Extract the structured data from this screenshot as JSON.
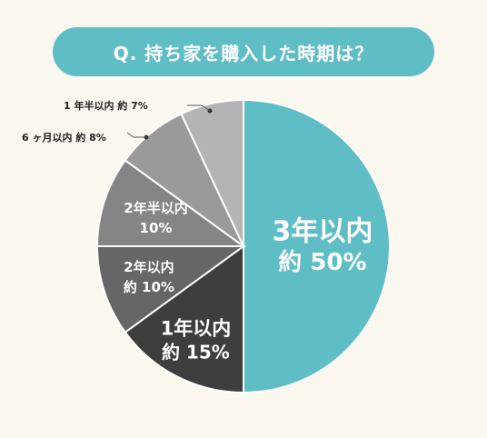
{
  "chart_data": {
    "type": "pie",
    "title": "Q. 持ち家を購入した時期は？",
    "start": "12 o'clock",
    "direction": "clockwise",
    "legend": "none",
    "slices": [
      {
        "name": "3年以内",
        "value": 50,
        "value_label": "約 50%",
        "color": "#5fbec5",
        "label_position": "inside"
      },
      {
        "name": "1年以内",
        "value": 15,
        "value_label": "約 15%",
        "color": "#3e3e3e",
        "label_position": "inside"
      },
      {
        "name": "2年以内",
        "value": 10,
        "value_label": "約 10%",
        "color": "#666666",
        "label_position": "inside"
      },
      {
        "name": "2年半以内",
        "value": 10,
        "value_label": "10%",
        "color": "#858585",
        "label_position": "inside"
      },
      {
        "name": "6 ヶ月以内",
        "value": 8,
        "value_label": "約 8%",
        "color": "#9a9a9a",
        "label_position": "outside"
      },
      {
        "name": "1 年半以内",
        "value": 7,
        "value_label": "約 7%",
        "color": "#b4b4b4",
        "label_position": "outside"
      }
    ]
  }
}
